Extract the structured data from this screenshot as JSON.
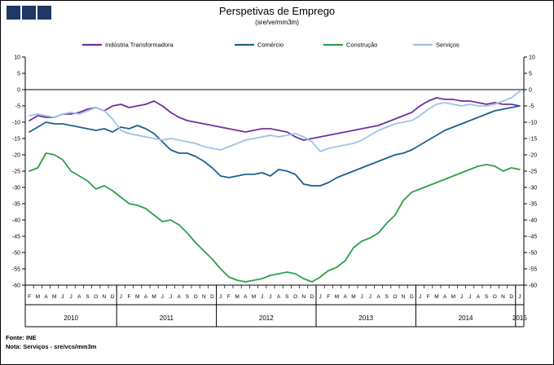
{
  "logo": {
    "color": "#1F3864"
  },
  "header": {
    "title": "Perspetivas de Emprego",
    "subtitle": "(sre/ve/mm3m)"
  },
  "footer": {
    "line1": "Fonte: INE",
    "line2": "Nota: Serviços - sre/vcs/mm3m"
  },
  "chart_data": {
    "type": "line",
    "title": "Perspetivas de Emprego",
    "subtitle": "(sre/ve/mm3m)",
    "grid": false,
    "legend_position": "top",
    "ylim": [
      -60,
      10
    ],
    "yticks": [
      10,
      5,
      0,
      -5,
      -10,
      -15,
      -20,
      -25,
      -30,
      -35,
      -40,
      -45,
      -50,
      -55,
      -60
    ],
    "x_months": [
      "F",
      "M",
      "A",
      "M",
      "J",
      "J",
      "A",
      "S",
      "O",
      "N",
      "D",
      "J",
      "F",
      "M",
      "A",
      "M",
      "J",
      "J",
      "A",
      "S",
      "O",
      "N",
      "D",
      "J",
      "F",
      "M",
      "A",
      "M",
      "J",
      "J",
      "A",
      "S",
      "O",
      "N",
      "D",
      "J",
      "F",
      "M",
      "A",
      "M",
      "J",
      "J",
      "A",
      "S",
      "O",
      "N",
      "D",
      "J",
      "F",
      "M",
      "A",
      "M",
      "J",
      "J",
      "A",
      "S",
      "O",
      "N",
      "D",
      "J"
    ],
    "x_years": [
      {
        "label": "2010",
        "months": 11
      },
      {
        "label": "2011",
        "months": 12
      },
      {
        "label": "2012",
        "months": 12
      },
      {
        "label": "2013",
        "months": 12
      },
      {
        "label": "2014",
        "months": 12
      },
      {
        "label": "2015",
        "months": 1
      }
    ],
    "series": [
      {
        "name": "Indústria Transformadora",
        "color": "#7030A0",
        "values": [
          -9.5,
          -8,
          -8.5,
          -8.5,
          -7.5,
          -7.5,
          -7,
          -6,
          -5.5,
          -6.5,
          -5,
          -4.5,
          -5.5,
          -5,
          -4.5,
          -3.5,
          -5,
          -7,
          -8.5,
          -9.5,
          -10,
          -10.5,
          -11,
          -11.5,
          -12,
          -12.5,
          -13,
          -12.5,
          -12,
          -12,
          -12.5,
          -13,
          -14.5,
          -15.5,
          -15,
          -14.5,
          -14,
          -13.5,
          -13,
          -12.5,
          -12,
          -11.5,
          -11,
          -10,
          -9,
          -8,
          -7,
          -5,
          -3.5,
          -2.5,
          -3,
          -3,
          -3.5,
          -3.5,
          -4,
          -4.5,
          -4,
          -4.5,
          -4.5,
          -5
        ]
      },
      {
        "name": "Comércio",
        "color": "#1F618D",
        "values": [
          -13,
          -11.5,
          -10,
          -10.5,
          -10.5,
          -11,
          -11.5,
          -12,
          -12.5,
          -12,
          -13,
          -11.5,
          -12,
          -11,
          -12,
          -13.5,
          -16,
          -18.5,
          -19.5,
          -19.5,
          -20.5,
          -22,
          -24,
          -26.5,
          -27,
          -26.5,
          -26,
          -26,
          -25.5,
          -26.5,
          -24.5,
          -25,
          -26,
          -29,
          -29.5,
          -29.5,
          -28.5,
          -27,
          -26,
          -25,
          -24,
          -23,
          -22,
          -21,
          -20,
          -19.5,
          -18.5,
          -17,
          -15.5,
          -14,
          -12.5,
          -11.5,
          -10.5,
          -9.5,
          -8.5,
          -7.5,
          -6.5,
          -6,
          -5.5,
          -5
        ]
      },
      {
        "name": "Construção",
        "color": "#2DA04A",
        "values": [
          -25,
          -24,
          -19.5,
          -20,
          -21.5,
          -25,
          -26.5,
          -28,
          -30.5,
          -29.5,
          -31,
          -33,
          -35,
          -35.5,
          -36.5,
          -38.5,
          -40.5,
          -40,
          -41.5,
          -44,
          -47,
          -49.5,
          -52,
          -55,
          -57.5,
          -58.5,
          -59,
          -58.5,
          -58,
          -57,
          -56.5,
          -56,
          -56.5,
          -58,
          -59,
          -57.5,
          -55.5,
          -54.5,
          -52.5,
          -48.5,
          -46.5,
          -45.5,
          -44,
          -41,
          -38.5,
          -34,
          -31.5,
          -30.5,
          -29.5,
          -28.5,
          -27.5,
          -26.5,
          -25.5,
          -24.5,
          -23.5,
          -23,
          -23.5,
          -25,
          -24,
          -24.5
        ]
      },
      {
        "name": "Serviços",
        "color": "#9DC3E6",
        "values": [
          -8,
          -7.5,
          -8,
          -8.5,
          -7.5,
          -7,
          -7.5,
          -6.5,
          -5.5,
          -6.5,
          -9,
          -12.5,
          -13.5,
          -14,
          -14.5,
          -15,
          -15.5,
          -15,
          -15.5,
          -16,
          -16.5,
          -17.5,
          -18,
          -18.5,
          -17.5,
          -16.5,
          -15.5,
          -15,
          -14.5,
          -14,
          -14.5,
          -14,
          -13.5,
          -14.5,
          -16,
          -19,
          -18,
          -17.5,
          -17,
          -16.5,
          -15.5,
          -14,
          -12.5,
          -11.5,
          -10.5,
          -10,
          -9.5,
          -8,
          -6,
          -4.5,
          -4,
          -4.5,
          -5,
          -4.5,
          -5,
          -5,
          -4.5,
          -3.5,
          -2.5,
          -0.5
        ]
      }
    ]
  }
}
